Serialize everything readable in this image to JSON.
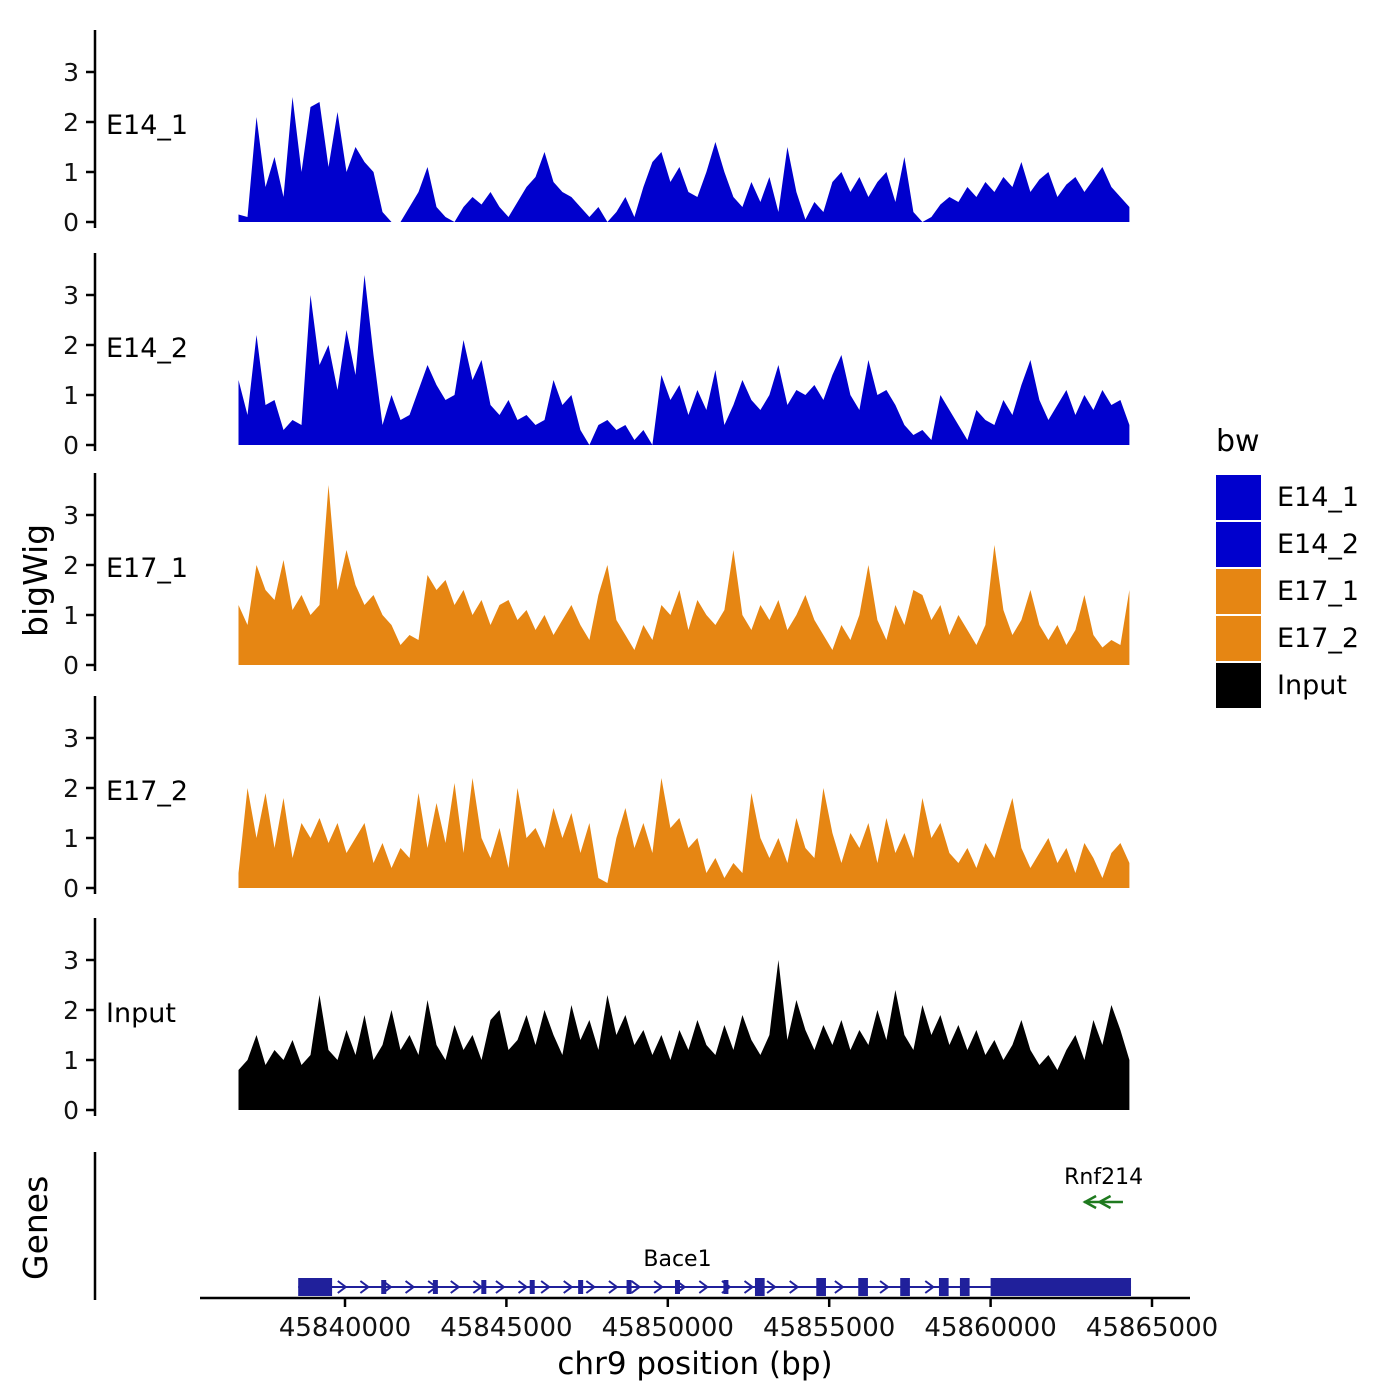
{
  "y_axis_title": "bigWig",
  "genes_title": "Genes",
  "x_axis": {
    "title": "chr9 position (bp)",
    "ticks": [
      45840000,
      45845000,
      45850000,
      45855000,
      45860000,
      45865000
    ]
  },
  "legend": {
    "title": "bw",
    "items": [
      {
        "label": "E14_1",
        "color": "#0000CD"
      },
      {
        "label": "E14_2",
        "color": "#0000CD"
      },
      {
        "label": "E17_1",
        "color": "#E68613"
      },
      {
        "label": "E17_2",
        "color": "#E68613"
      },
      {
        "label": "Input",
        "color": "#000000"
      }
    ]
  },
  "chart_data": {
    "type": "area",
    "title": "",
    "xlabel": "chr9 position (bp)",
    "ylabel": "bigWig",
    "chrom": "chr9",
    "x_range": [
      45836700,
      45864300
    ],
    "ylim": [
      0,
      3.7
    ],
    "y_ticks": [
      0,
      1,
      2,
      3
    ],
    "x_ticks": [
      45840000,
      45845000,
      45850000,
      45855000,
      45860000,
      45865000
    ],
    "grid": false,
    "legend_position": "right",
    "tracks": [
      {
        "name": "E14_1",
        "color": "#0000CD",
        "values": [
          0.15,
          0.1,
          2.1,
          0.7,
          1.3,
          0.5,
          2.5,
          1.0,
          2.3,
          2.4,
          1.1,
          2.2,
          1.0,
          1.5,
          1.2,
          1.0,
          0.2,
          0,
          0,
          0.3,
          0.6,
          1.1,
          0.3,
          0.1,
          0,
          0.3,
          0.5,
          0.35,
          0.6,
          0.3,
          0.1,
          0.4,
          0.7,
          0.9,
          1.4,
          0.8,
          0.6,
          0.5,
          0.3,
          0.1,
          0.3,
          0,
          0.2,
          0.5,
          0.1,
          0.7,
          1.2,
          1.4,
          0.8,
          1.1,
          0.6,
          0.5,
          1.0,
          1.6,
          1.0,
          0.5,
          0.3,
          0.8,
          0.4,
          0.9,
          0.2,
          1.5,
          0.6,
          0.05,
          0.4,
          0.2,
          0.8,
          1.0,
          0.6,
          0.9,
          0.5,
          0.8,
          1.0,
          0.4,
          1.3,
          0.2,
          0,
          0.1,
          0.35,
          0.5,
          0.4,
          0.7,
          0.5,
          0.8,
          0.6,
          0.9,
          0.7,
          1.2,
          0.6,
          0.85,
          1.0,
          0.5,
          0.75,
          0.9,
          0.6,
          0.85,
          1.1,
          0.7,
          0.5,
          0.3
        ]
      },
      {
        "name": "E14_2",
        "color": "#0000CD",
        "values": [
          1.3,
          0.6,
          2.2,
          0.8,
          0.9,
          0.3,
          0.5,
          0.4,
          3.0,
          1.6,
          2.0,
          1.1,
          2.3,
          1.4,
          3.4,
          1.8,
          0.4,
          1.0,
          0.5,
          0.6,
          1.1,
          1.6,
          1.2,
          0.9,
          1.0,
          2.1,
          1.3,
          1.7,
          0.8,
          0.6,
          0.9,
          0.5,
          0.6,
          0.4,
          0.5,
          1.3,
          0.8,
          1.0,
          0.3,
          0,
          0.4,
          0.5,
          0.3,
          0.4,
          0.1,
          0.3,
          0,
          1.4,
          0.9,
          1.2,
          0.6,
          1.1,
          0.7,
          1.5,
          0.4,
          0.8,
          1.3,
          0.9,
          0.7,
          1.0,
          1.6,
          0.8,
          1.1,
          1.0,
          1.2,
          0.9,
          1.4,
          1.8,
          1.0,
          0.7,
          1.7,
          1.0,
          1.1,
          0.8,
          0.4,
          0.2,
          0.3,
          0.1,
          1.0,
          0.7,
          0.4,
          0.1,
          0.7,
          0.5,
          0.4,
          0.9,
          0.6,
          1.2,
          1.7,
          0.9,
          0.5,
          0.8,
          1.1,
          0.6,
          1.0,
          0.7,
          1.1,
          0.8,
          0.9,
          0.4
        ]
      },
      {
        "name": "E17_1",
        "color": "#E68613",
        "values": [
          1.2,
          0.8,
          2.0,
          1.5,
          1.3,
          2.1,
          1.1,
          1.4,
          1.0,
          1.2,
          3.6,
          1.5,
          2.3,
          1.6,
          1.2,
          1.4,
          1.0,
          0.8,
          0.4,
          0.6,
          0.5,
          1.8,
          1.5,
          1.7,
          1.2,
          1.5,
          1.0,
          1.3,
          0.8,
          1.2,
          1.3,
          0.9,
          1.1,
          0.7,
          1.0,
          0.6,
          0.9,
          1.2,
          0.8,
          0.5,
          1.4,
          2.0,
          0.9,
          0.6,
          0.3,
          0.8,
          0.5,
          1.2,
          1.0,
          1.5,
          0.7,
          1.3,
          1.0,
          0.8,
          1.1,
          2.3,
          1.0,
          0.7,
          1.2,
          0.9,
          1.3,
          0.7,
          1.0,
          1.4,
          0.9,
          0.6,
          0.3,
          0.8,
          0.5,
          1.0,
          2.0,
          0.9,
          0.5,
          1.2,
          0.8,
          1.5,
          1.4,
          0.9,
          1.2,
          0.6,
          1.0,
          0.7,
          0.4,
          0.8,
          2.4,
          1.1,
          0.6,
          0.9,
          1.5,
          0.8,
          0.5,
          0.8,
          0.4,
          0.7,
          1.4,
          0.6,
          0.35,
          0.5,
          0.4,
          1.5
        ]
      },
      {
        "name": "E17_2",
        "color": "#E68613",
        "values": [
          0.3,
          2.0,
          1.0,
          1.9,
          0.8,
          1.8,
          0.6,
          1.3,
          1.0,
          1.4,
          0.9,
          1.3,
          0.7,
          1.0,
          1.3,
          0.5,
          0.9,
          0.4,
          0.8,
          0.6,
          1.9,
          0.8,
          1.7,
          0.9,
          2.1,
          0.7,
          2.2,
          1.0,
          0.6,
          1.2,
          0.4,
          2.0,
          1.0,
          1.2,
          0.8,
          1.6,
          1.0,
          1.5,
          0.7,
          1.3,
          0.2,
          0.1,
          1.0,
          1.6,
          0.8,
          1.3,
          0.7,
          2.2,
          1.2,
          1.4,
          0.8,
          1.0,
          0.3,
          0.6,
          0.2,
          0.5,
          0.3,
          1.9,
          1.0,
          0.6,
          1.0,
          0.5,
          1.4,
          0.8,
          0.6,
          2.0,
          1.1,
          0.5,
          1.1,
          0.8,
          1.3,
          0.5,
          1.4,
          0.7,
          1.1,
          0.6,
          1.8,
          1.0,
          1.3,
          0.7,
          0.5,
          0.8,
          0.4,
          0.9,
          0.6,
          1.2,
          1.8,
          0.8,
          0.4,
          0.7,
          1.0,
          0.5,
          0.8,
          0.3,
          0.9,
          0.6,
          0.2,
          0.7,
          0.9,
          0.5
        ]
      },
      {
        "name": "Input",
        "color": "#000000",
        "values": [
          0.8,
          1.0,
          1.5,
          0.9,
          1.2,
          1.0,
          1.4,
          0.9,
          1.1,
          2.3,
          1.2,
          1.0,
          1.6,
          1.1,
          1.9,
          1.0,
          1.3,
          2.0,
          1.2,
          1.5,
          1.1,
          2.2,
          1.3,
          1.0,
          1.7,
          1.2,
          1.5,
          1.0,
          1.8,
          2.0,
          1.2,
          1.4,
          1.9,
          1.3,
          2.0,
          1.5,
          1.1,
          2.1,
          1.4,
          1.8,
          1.2,
          2.3,
          1.5,
          1.9,
          1.3,
          1.6,
          1.1,
          1.5,
          1.0,
          1.6,
          1.2,
          1.8,
          1.3,
          1.1,
          1.7,
          1.2,
          1.9,
          1.4,
          1.1,
          1.5,
          3.0,
          1.4,
          2.2,
          1.6,
          1.2,
          1.7,
          1.3,
          1.8,
          1.2,
          1.6,
          1.3,
          2.0,
          1.4,
          2.4,
          1.5,
          1.2,
          2.1,
          1.5,
          1.9,
          1.3,
          1.7,
          1.2,
          1.6,
          1.1,
          1.4,
          1.0,
          1.3,
          1.8,
          1.2,
          0.9,
          1.1,
          0.8,
          1.2,
          1.5,
          1.0,
          1.8,
          1.3,
          2.1,
          1.6,
          1.0
        ]
      }
    ]
  },
  "genes": {
    "bace1": {
      "label": "Bace1",
      "color": "#20209B",
      "strand": "+",
      "start": 45838550,
      "end": 45864350,
      "thick_boxes": [
        [
          45838550,
          45839600
        ],
        [
          45852700,
          45853000
        ],
        [
          45854600,
          45854900
        ],
        [
          45855900,
          45856200
        ],
        [
          45857200,
          45857500
        ],
        [
          45858400,
          45858700
        ],
        [
          45859050,
          45859350
        ],
        [
          45860000,
          45864350
        ]
      ],
      "exons": [
        45841200,
        45842800,
        45844300,
        45845800,
        45847300,
        45848800,
        45850300,
        45851800
      ]
    },
    "rnf214": {
      "label": "Rnf214",
      "color": "#1F7A1F",
      "strand": "-",
      "start": 45862900,
      "end": 45864100
    }
  }
}
